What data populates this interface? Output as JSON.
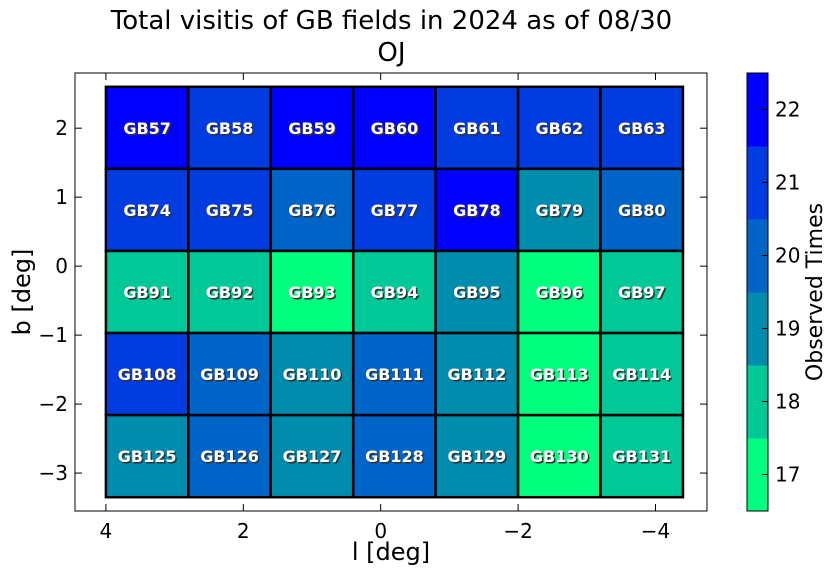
{
  "chart_data": {
    "type": "heatmap",
    "title": "Total visitis of GB fields in 2024 as of 08/30",
    "subtitle": "OJ",
    "xlabel": "l [deg]",
    "ylabel": "b [deg]",
    "xlim": [
      4.45,
      -4.75
    ],
    "ylim": [
      -3.55,
      2.8
    ],
    "x_ticks": [
      4,
      2,
      0,
      -2,
      -4
    ],
    "x_tick_labels": [
      "4",
      "2",
      "0",
      "−2",
      "−4"
    ],
    "y_ticks": [
      2,
      1,
      0,
      -1,
      -2,
      -3
    ],
    "y_tick_labels": [
      "2",
      "1",
      "0",
      "−1",
      "−2",
      "−3"
    ],
    "l_edges": [
      4.0,
      2.8,
      1.6,
      0.4,
      -0.8,
      -2.0,
      -3.2,
      -4.4
    ],
    "b_edges": [
      2.6,
      1.41,
      0.22,
      -0.97,
      -2.16,
      -3.35
    ],
    "fields": [
      [
        "GB57",
        "GB58",
        "GB59",
        "GB60",
        "GB61",
        "GB62",
        "GB63"
      ],
      [
        "GB74",
        "GB75",
        "GB76",
        "GB77",
        "GB78",
        "GB79",
        "GB80"
      ],
      [
        "GB91",
        "GB92",
        "GB93",
        "GB94",
        "GB95",
        "GB96",
        "GB97"
      ],
      [
        "GB108",
        "GB109",
        "GB110",
        "GB111",
        "GB112",
        "GB113",
        "GB114"
      ],
      [
        "GB125",
        "GB126",
        "GB127",
        "GB128",
        "GB129",
        "GB130",
        "GB131"
      ]
    ],
    "observed_times": [
      [
        22,
        21,
        22,
        22,
        21,
        21,
        21
      ],
      [
        21,
        21,
        20,
        21,
        22,
        19,
        20
      ],
      [
        18,
        18,
        17,
        18,
        19,
        17,
        18
      ],
      [
        21,
        20,
        19,
        20,
        19,
        17,
        18
      ],
      [
        19,
        20,
        19,
        20,
        19,
        17,
        18
      ]
    ],
    "colorbar": {
      "label": "Observed Times",
      "range": [
        16.5,
        22.5
      ],
      "ticks": [
        17,
        18,
        19,
        20,
        21,
        22
      ],
      "tick_labels": [
        "17",
        "18",
        "19",
        "20",
        "21",
        "22"
      ],
      "colors": [
        "#00ff7f",
        "#00c896",
        "#008cac",
        "#0064c8",
        "#003ce0",
        "#0000ff"
      ]
    }
  }
}
